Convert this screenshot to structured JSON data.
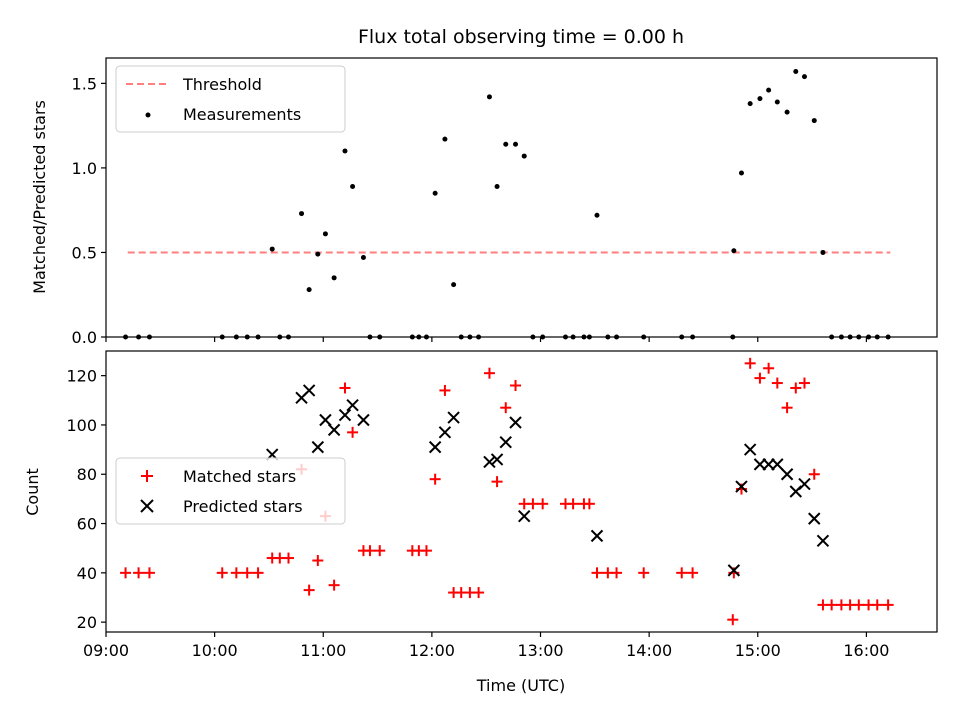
{
  "title": "Flux total observing time = 0.00 h",
  "colors": {
    "threshold": "#ff7f7f",
    "measurement": "#000000",
    "matched": "#ff0000",
    "predicted": "#000000",
    "frame": "#000000"
  },
  "chart_data": [
    {
      "type": "scatter",
      "panel": "top",
      "ylabel": "Matched/Predicted stars",
      "xlabel": "",
      "xlim": [
        9.0,
        16.65
      ],
      "ylim": [
        0,
        1.65
      ],
      "yticks": [
        0,
        0.5,
        1.0,
        1.5
      ],
      "ytick_labels": [
        "0.0",
        "0.5",
        "1.0",
        "1.5"
      ],
      "legend_position": "upper-left",
      "threshold": {
        "name": "Threshold",
        "y": 0.5,
        "x_range": [
          9.2,
          16.22
        ]
      },
      "series": [
        {
          "name": "Measurements",
          "points": [
            [
              9.18,
              0
            ],
            [
              9.3,
              0
            ],
            [
              9.4,
              0
            ],
            [
              10.07,
              0
            ],
            [
              10.2,
              0
            ],
            [
              10.3,
              0
            ],
            [
              10.4,
              0
            ],
            [
              10.53,
              0.52
            ],
            [
              10.6,
              0
            ],
            [
              10.68,
              0
            ],
            [
              10.8,
              0.73
            ],
            [
              10.87,
              0.28
            ],
            [
              10.95,
              0.49
            ],
            [
              11.02,
              0.61
            ],
            [
              11.1,
              0.35
            ],
            [
              11.2,
              1.1
            ],
            [
              11.27,
              0.89
            ],
            [
              11.37,
              0.47
            ],
            [
              11.43,
              0
            ],
            [
              11.52,
              0
            ],
            [
              11.82,
              0
            ],
            [
              11.88,
              0
            ],
            [
              11.95,
              0
            ],
            [
              12.03,
              0.85
            ],
            [
              12.12,
              1.17
            ],
            [
              12.2,
              0.31
            ],
            [
              12.27,
              0
            ],
            [
              12.35,
              0
            ],
            [
              12.43,
              0
            ],
            [
              12.53,
              1.42
            ],
            [
              12.6,
              0.89
            ],
            [
              12.68,
              1.14
            ],
            [
              12.77,
              1.14
            ],
            [
              12.85,
              1.07
            ],
            [
              12.93,
              0
            ],
            [
              13.02,
              0
            ],
            [
              13.23,
              0
            ],
            [
              13.3,
              0
            ],
            [
              13.4,
              0
            ],
            [
              13.45,
              0
            ],
            [
              13.52,
              0.72
            ],
            [
              13.62,
              0
            ],
            [
              13.7,
              0
            ],
            [
              13.95,
              0
            ],
            [
              14.3,
              0
            ],
            [
              14.4,
              0
            ],
            [
              14.77,
              0
            ],
            [
              14.78,
              0.51
            ],
            [
              14.85,
              0.97
            ],
            [
              14.93,
              1.38
            ],
            [
              15.02,
              1.41
            ],
            [
              15.1,
              1.46
            ],
            [
              15.18,
              1.39
            ],
            [
              15.27,
              1.33
            ],
            [
              15.35,
              1.57
            ],
            [
              15.43,
              1.54
            ],
            [
              15.52,
              1.28
            ],
            [
              15.6,
              0.5
            ],
            [
              15.68,
              0
            ],
            [
              15.77,
              0
            ],
            [
              15.85,
              0
            ],
            [
              15.93,
              0
            ],
            [
              16.02,
              0
            ],
            [
              16.1,
              0
            ],
            [
              16.2,
              0
            ]
          ]
        }
      ]
    },
    {
      "type": "scatter",
      "panel": "bottom",
      "ylabel": "Count",
      "xlabel": "Time (UTC)",
      "xlim": [
        9.0,
        16.65
      ],
      "ylim": [
        16,
        130
      ],
      "yticks": [
        20,
        40,
        60,
        80,
        100,
        120
      ],
      "ytick_labels": [
        "20",
        "40",
        "60",
        "80",
        "100",
        "120"
      ],
      "xticks": [
        9,
        10,
        11,
        12,
        13,
        14,
        15,
        16
      ],
      "xtick_labels": [
        "09:00",
        "10:00",
        "11:00",
        "12:00",
        "13:00",
        "14:00",
        "15:00",
        "16:00"
      ],
      "legend_position": "center-left",
      "series": [
        {
          "name": "Matched stars",
          "marker": "plus",
          "points": [
            [
              9.18,
              40
            ],
            [
              9.3,
              40
            ],
            [
              9.4,
              40
            ],
            [
              10.07,
              40
            ],
            [
              10.2,
              40
            ],
            [
              10.3,
              40
            ],
            [
              10.4,
              40
            ],
            [
              10.53,
              46
            ],
            [
              10.6,
              46
            ],
            [
              10.68,
              46
            ],
            [
              10.8,
              82
            ],
            [
              10.87,
              33
            ],
            [
              10.95,
              45
            ],
            [
              11.02,
              63
            ],
            [
              11.1,
              35
            ],
            [
              11.2,
              115
            ],
            [
              11.27,
              97
            ],
            [
              11.37,
              49
            ],
            [
              11.43,
              49
            ],
            [
              11.52,
              49
            ],
            [
              11.82,
              49
            ],
            [
              11.88,
              49
            ],
            [
              11.95,
              49
            ],
            [
              12.03,
              78
            ],
            [
              12.12,
              114
            ],
            [
              12.2,
              32
            ],
            [
              12.27,
              32
            ],
            [
              12.35,
              32
            ],
            [
              12.43,
              32
            ],
            [
              12.53,
              121
            ],
            [
              12.6,
              77
            ],
            [
              12.68,
              107
            ],
            [
              12.77,
              116
            ],
            [
              12.85,
              68
            ],
            [
              12.93,
              68
            ],
            [
              13.02,
              68
            ],
            [
              13.23,
              68
            ],
            [
              13.3,
              68
            ],
            [
              13.4,
              68
            ],
            [
              13.45,
              68
            ],
            [
              13.52,
              40
            ],
            [
              13.62,
              40
            ],
            [
              13.7,
              40
            ],
            [
              13.95,
              40
            ],
            [
              14.3,
              40
            ],
            [
              14.4,
              40
            ],
            [
              14.77,
              21
            ],
            [
              14.78,
              40
            ],
            [
              14.85,
              74
            ],
            [
              14.93,
              125
            ],
            [
              15.02,
              119
            ],
            [
              15.1,
              123
            ],
            [
              15.18,
              117
            ],
            [
              15.27,
              107
            ],
            [
              15.35,
              115
            ],
            [
              15.43,
              117
            ],
            [
              15.52,
              80
            ],
            [
              15.6,
              27
            ],
            [
              15.68,
              27
            ],
            [
              15.77,
              27
            ],
            [
              15.85,
              27
            ],
            [
              15.93,
              27
            ],
            [
              16.02,
              27
            ],
            [
              16.1,
              27
            ],
            [
              16.2,
              27
            ]
          ]
        },
        {
          "name": "Predicted stars",
          "marker": "x",
          "points": [
            [
              10.53,
              88
            ],
            [
              10.8,
              111
            ],
            [
              10.87,
              114
            ],
            [
              10.95,
              91
            ],
            [
              11.02,
              102
            ],
            [
              11.1,
              98
            ],
            [
              11.2,
              104
            ],
            [
              11.27,
              108
            ],
            [
              11.37,
              102
            ],
            [
              12.03,
              91
            ],
            [
              12.12,
              97
            ],
            [
              12.2,
              103
            ],
            [
              12.53,
              85
            ],
            [
              12.6,
              86
            ],
            [
              12.68,
              93
            ],
            [
              12.77,
              101
            ],
            [
              12.85,
              63
            ],
            [
              13.52,
              55
            ],
            [
              14.78,
              41
            ],
            [
              14.85,
              75
            ],
            [
              14.93,
              90
            ],
            [
              15.02,
              84
            ],
            [
              15.1,
              84
            ],
            [
              15.18,
              84
            ],
            [
              15.27,
              80
            ],
            [
              15.35,
              73
            ],
            [
              15.43,
              76
            ],
            [
              15.52,
              62
            ],
            [
              15.6,
              53
            ]
          ]
        }
      ]
    }
  ]
}
